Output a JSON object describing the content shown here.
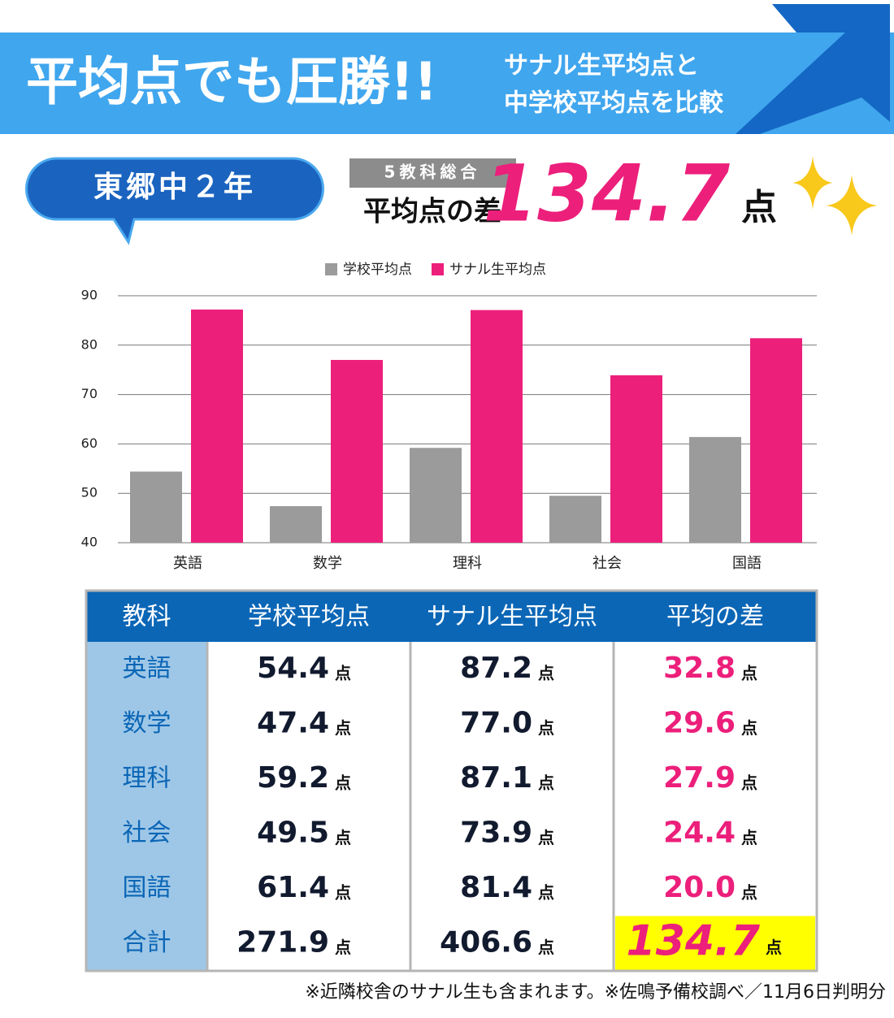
{
  "header": {
    "title": "平均点でも圧勝!!",
    "subtitle": [
      "サナル生平均点と",
      "中学校平均点を比較"
    ]
  },
  "badge": "東郷中２年",
  "summary": {
    "label": "5教科総合",
    "caption": "平均点の差",
    "value": "134.7",
    "unit": "点"
  },
  "chart_data": {
    "type": "bar",
    "categories": [
      "英語",
      "数学",
      "理科",
      "社会",
      "国語"
    ],
    "series": [
      {
        "name": "学校平均点",
        "color": "#9b9b9b",
        "values": [
          54.4,
          47.4,
          59.2,
          49.5,
          61.4
        ]
      },
      {
        "name": "サナル生平均点",
        "color": "#ec1f7b",
        "values": [
          87.2,
          77.0,
          87.1,
          73.9,
          81.4
        ]
      }
    ],
    "ylim": [
      40,
      90
    ],
    "yticks": [
      40,
      50,
      60,
      70,
      80,
      90
    ],
    "grid": true,
    "legend": "top"
  },
  "table": {
    "columns": [
      "教科",
      "学校平均点",
      "サナル生平均点",
      "平均の差"
    ],
    "rows": [
      [
        "英語",
        "54.4",
        "87.2",
        "32.8"
      ],
      [
        "数学",
        "47.4",
        "77.0",
        "29.6"
      ],
      [
        "理科",
        "59.2",
        "87.1",
        "27.9"
      ],
      [
        "社会",
        "49.5",
        "73.9",
        "24.4"
      ],
      [
        "国語",
        "61.4",
        "81.4",
        "20.0"
      ],
      [
        "合計",
        "271.9",
        "406.6",
        "134.7"
      ]
    ],
    "unit": "点"
  },
  "footnote": "※近隣校舎のサナル生も含まれます。※佐鳴予備校調べ／11月6日判明分"
}
